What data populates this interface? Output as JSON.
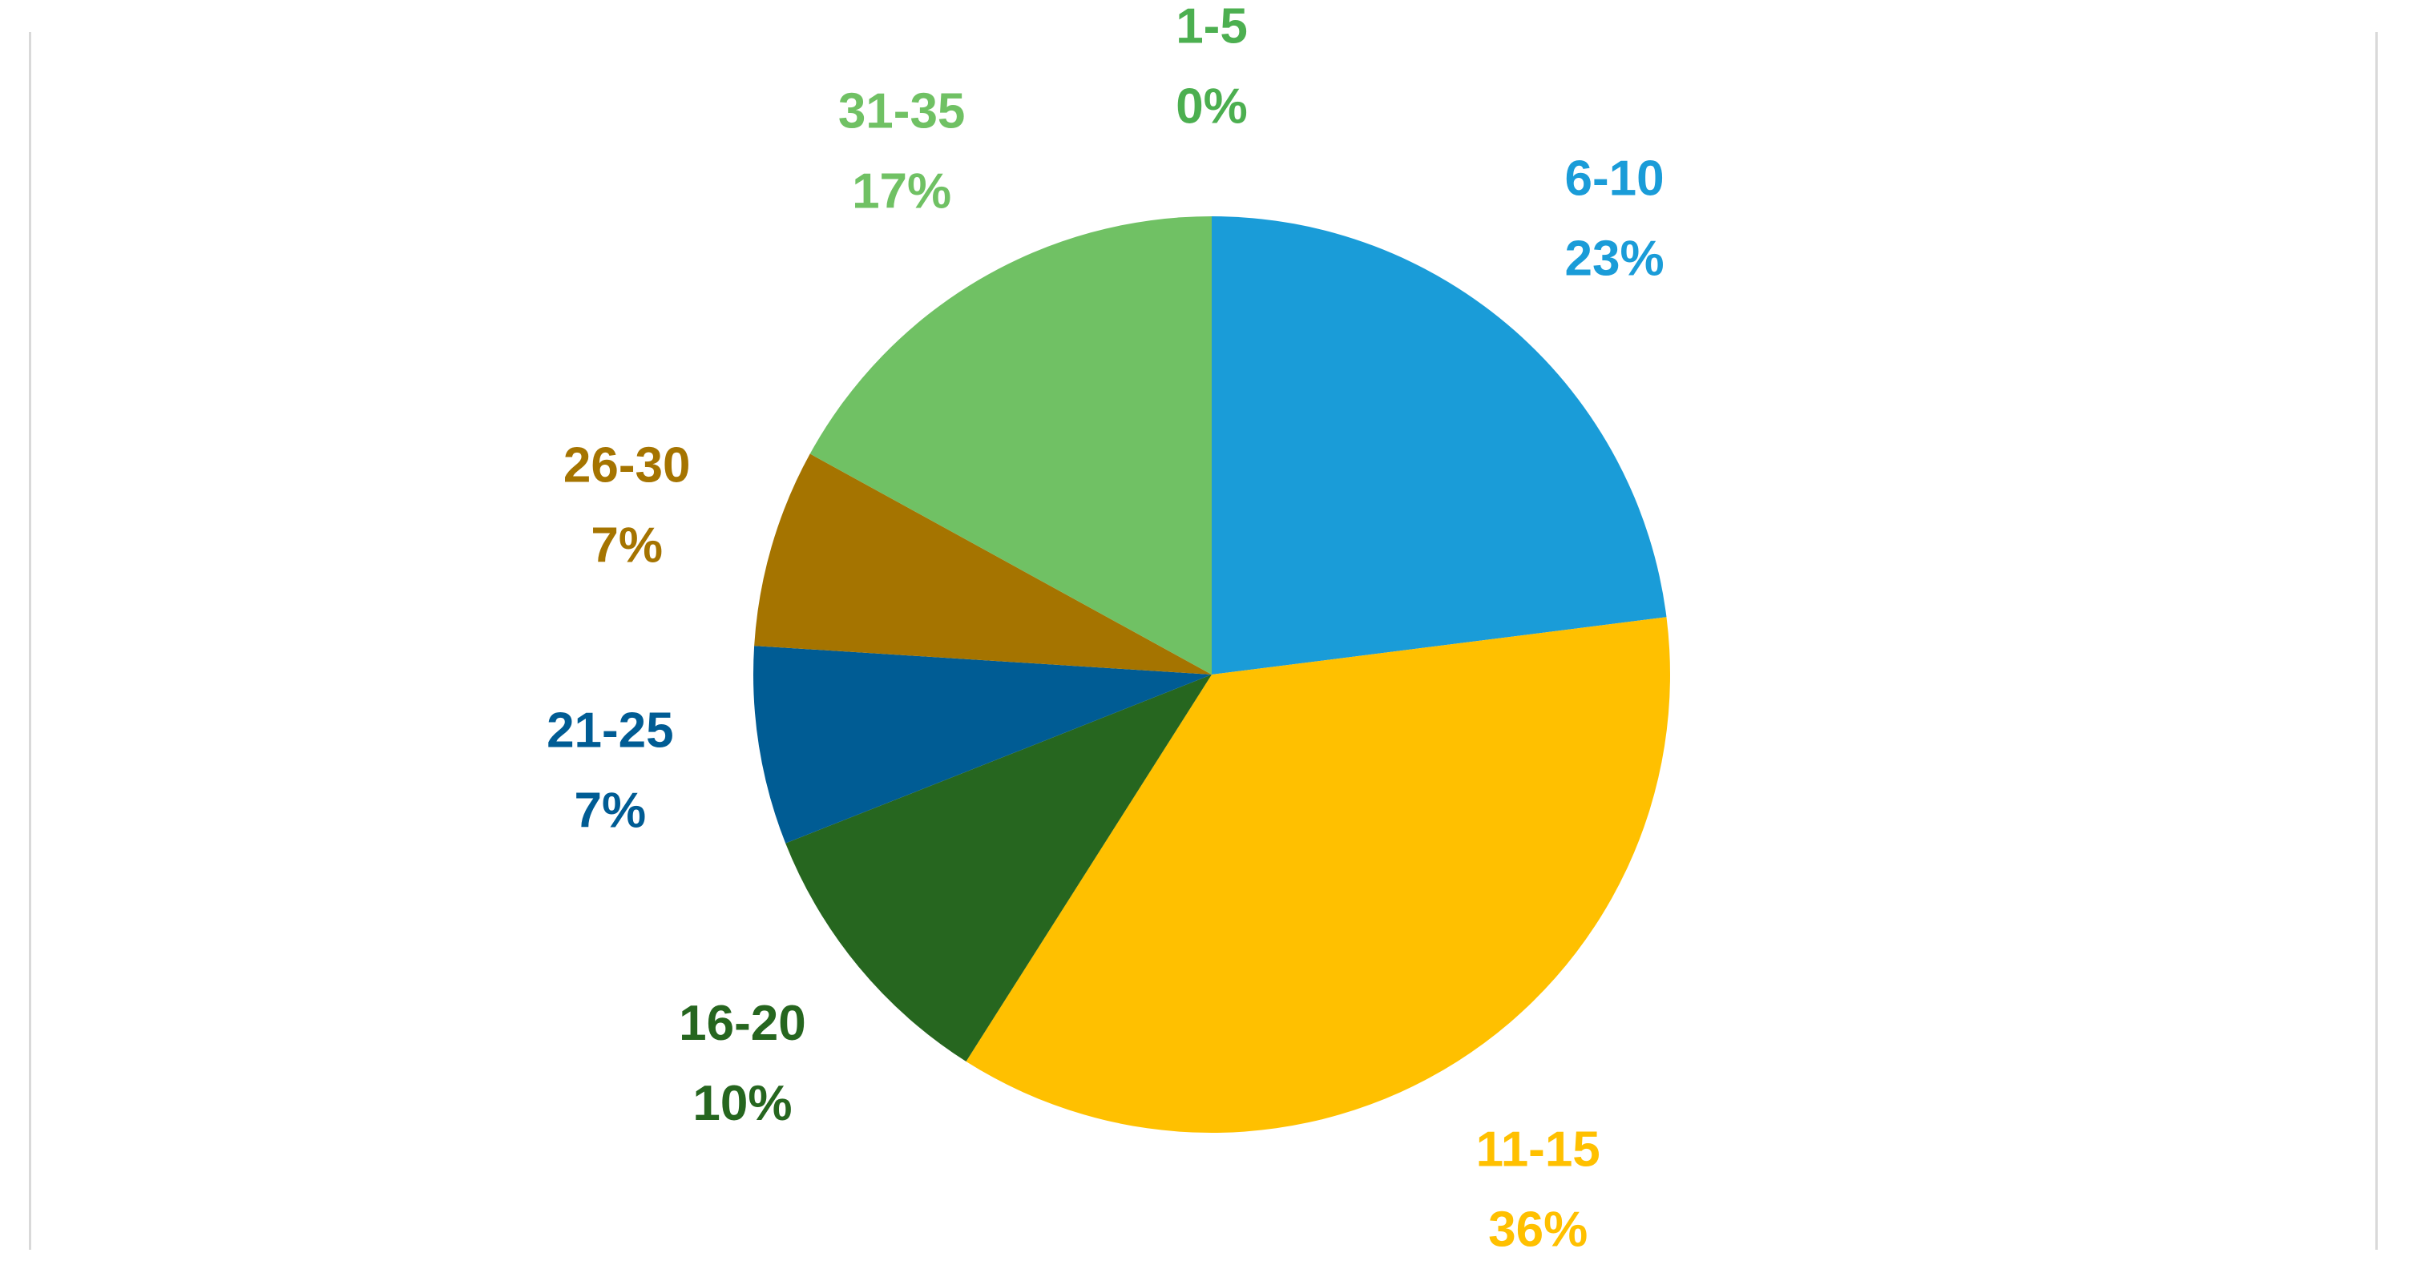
{
  "chart_data": {
    "type": "pie",
    "title": "",
    "categories": [
      "1-5",
      "6-10",
      "11-15",
      "16-20",
      "21-25",
      "26-30",
      "31-35"
    ],
    "values": [
      0,
      23,
      36,
      10,
      7,
      7,
      17
    ],
    "percent_labels": [
      "0%",
      "23%",
      "36%",
      "10%",
      "7%",
      "7%",
      "17%"
    ],
    "colors": [
      "#4CAF50",
      "#1A9CD8",
      "#FFC000",
      "#26661F",
      "#005C94",
      "#A57400",
      "#70C164"
    ],
    "label_colors": [
      "#4CAF50",
      "#1A9CD8",
      "#FFC000",
      "#26661F",
      "#005C94",
      "#A57400",
      "#70C164"
    ],
    "start_angle_deg": 0,
    "direction": "clockwise",
    "legend": "none",
    "data_labels": "category and percentage, outside slices"
  }
}
